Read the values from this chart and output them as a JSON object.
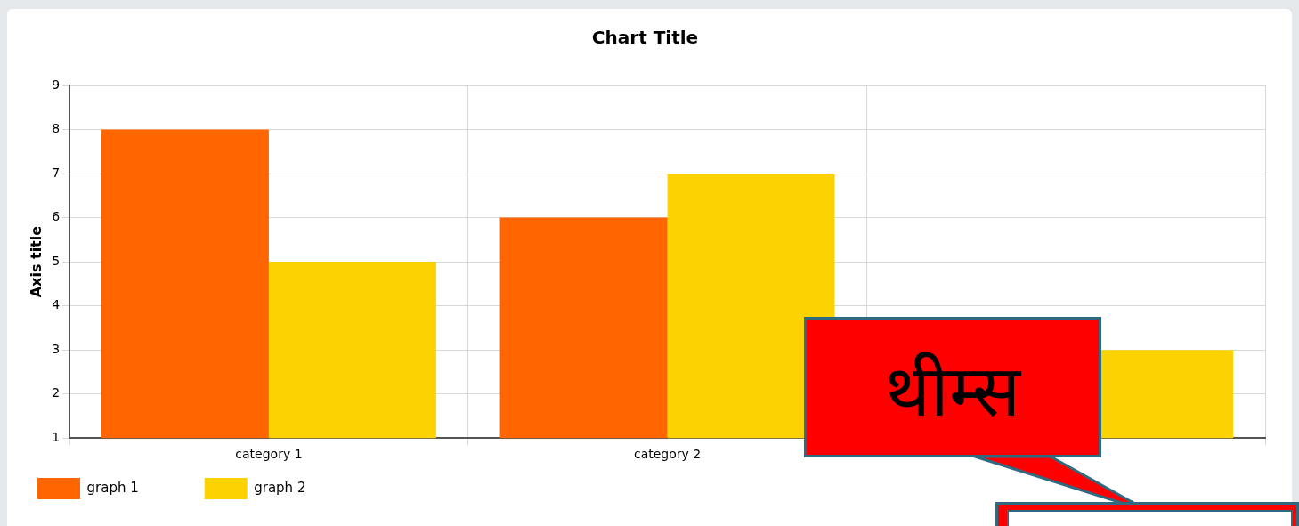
{
  "chart_data": {
    "type": "bar",
    "title": "Chart Title",
    "ylabel": "Axis title",
    "categories": [
      "category 1",
      "category 2",
      null
    ],
    "series": [
      {
        "name": "graph 1",
        "color": "#ff6600",
        "values": [
          8,
          6,
          null
        ]
      },
      {
        "name": "graph 2",
        "color": "#fcd202",
        "values": [
          5,
          7,
          3
        ]
      }
    ],
    "ylim": [
      1,
      9
    ],
    "yticks": [
      1,
      2,
      3,
      4,
      5,
      6,
      7,
      8,
      9
    ],
    "grid": true,
    "legend": "bottom left",
    "annotations": [
      "थीम्स"
    ]
  }
}
